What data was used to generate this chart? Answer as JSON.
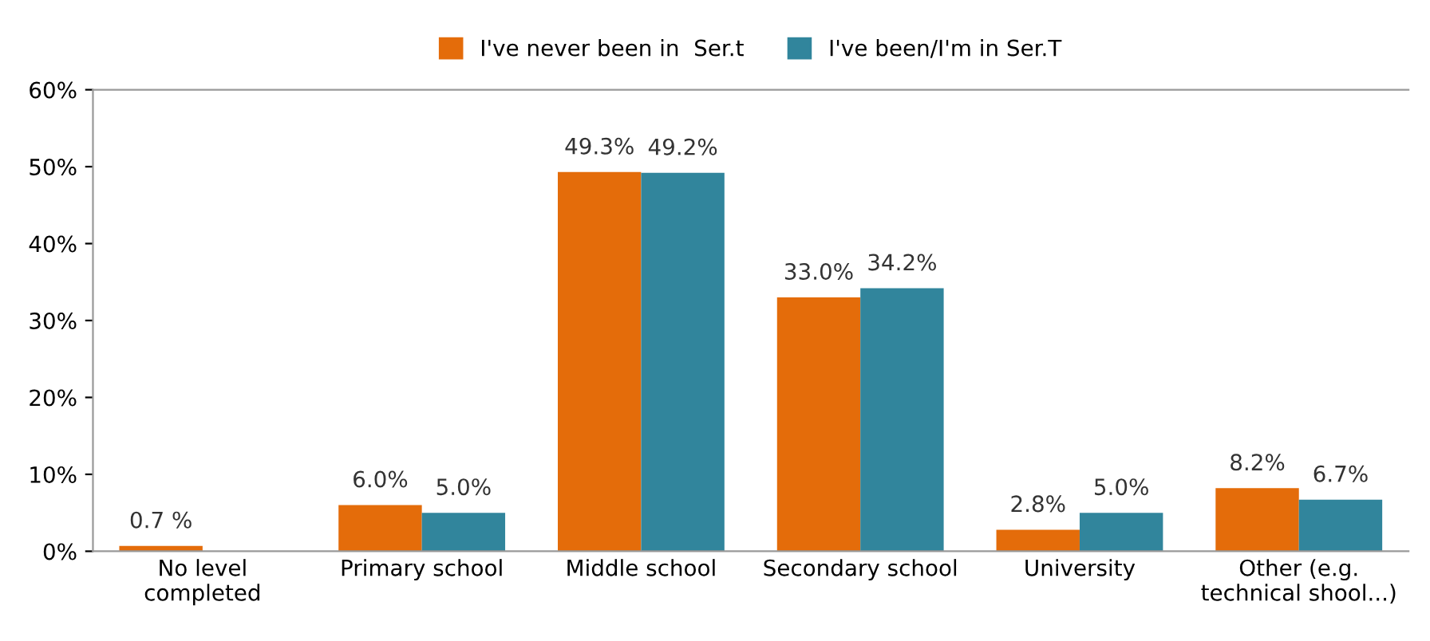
{
  "chart_data": {
    "type": "bar",
    "categories": [
      "No level\ncompleted",
      "Primary school",
      "Middle school",
      "Secondary school",
      "University",
      "Other (e.g.\ntechnical shool...)"
    ],
    "series": [
      {
        "name": "I've never been in  Ser.t",
        "color": "#e46c0a",
        "values": [
          0.7,
          6.0,
          49.3,
          33.0,
          2.8,
          8.2
        ],
        "value_labels": [
          "0.7 %",
          "6.0%",
          "49.3%",
          "33.0%",
          "2.8%",
          "8.2%"
        ]
      },
      {
        "name": "I've been/I'm in Ser.T",
        "color": "#31859c",
        "values": [
          null,
          5.0,
          49.2,
          34.2,
          5.0,
          6.7
        ],
        "value_labels": [
          null,
          "5.0%",
          "49.2%",
          "34.2%",
          "5.0%",
          "6.7%"
        ]
      }
    ],
    "ylim": [
      0,
      60
    ],
    "yticks": [
      {
        "value": 0,
        "label": "0%"
      },
      {
        "value": 10,
        "label": "10%"
      },
      {
        "value": 20,
        "label": "20%"
      },
      {
        "value": 30,
        "label": "30%"
      },
      {
        "value": 40,
        "label": "40%"
      },
      {
        "value": 50,
        "label": "50%"
      },
      {
        "value": 60,
        "label": "60%"
      }
    ],
    "grid": false,
    "legend": "top"
  }
}
